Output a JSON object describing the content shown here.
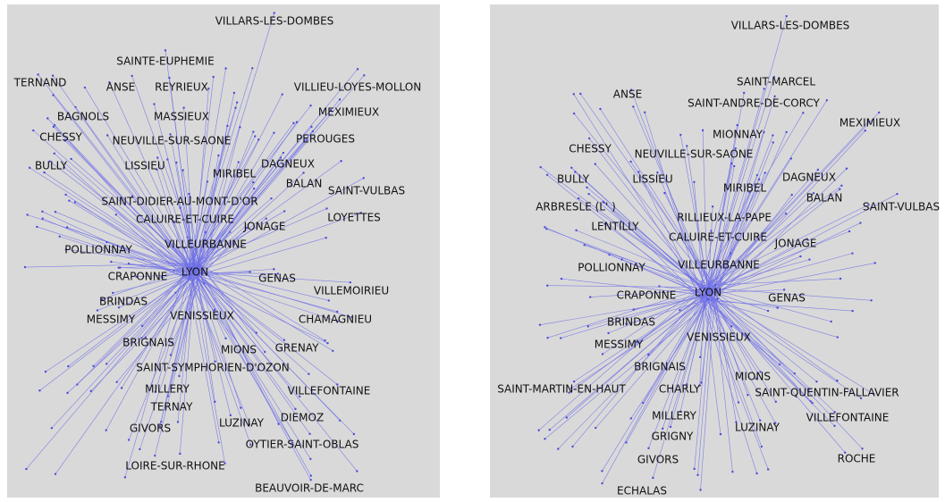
{
  "panels": [
    {
      "nodes": [
        "VILLARS-LES-DOMBES",
        "SAINTE-EUPHEMIE",
        "TERNAND",
        "ANSE",
        "REYRIEUX",
        "VILLIEU-LOYES-MOLLON",
        "BAGNOLS",
        "MASSIEUX",
        "MEXIMIEUX",
        "CHESSY",
        "NEUVILLE-SUR-SAONE",
        "PEROUGES",
        "BULLY",
        "LISSIEU",
        "MIRIBEL",
        "DAGNEUX",
        "BALAN",
        "SAINT-VULBAS",
        "SAINT-DIDIER-AU-MONT-D'OR",
        "CALUIRE-ET-CUIRE",
        "JONAGE",
        "LOYETTES",
        "POLLIONNAY",
        "VILLEURBANNE",
        "CRAPONNE",
        "LYON",
        "GENAS",
        "VILLEMOIRIEU",
        "BRINDAS",
        "MESSIMY",
        "VENISSIEUX",
        "CHAMAGNIEU",
        "BRIGNAIS",
        "MIONS",
        "GRENAY",
        "SAINT-SYMPHORIEN-D'OZON",
        "MILLERY",
        "VILLEFONTAINE",
        "TERNAY",
        "LUZINAY",
        "DIEMOZ",
        "GIVORS",
        "OYTIER-SAINT-OBLAS",
        "LOIRE-SUR-RHONE",
        "BEAUVOIR-DE-MARC"
      ]
    },
    {
      "nodes": [
        "VILLARS-LES-DOMBES",
        "SAINT-MARCEL",
        "ANSE",
        "SAINT-ANDRE-DE-CORCY",
        "MEXIMIEUX",
        "MIONNAY",
        "CHESSY",
        "NEUVILLE-SUR-SAONE",
        "BULLY",
        "LISSIEU",
        "MIRIBEL",
        "DAGNEUX",
        "BALAN",
        "SAINT-VULBAS",
        "ARBRESLE (L' )",
        "RILLIEUX-LA-PAPE",
        "LENTILLY",
        "CALUIRE-ET-CUIRE",
        "JONAGE",
        "POLLIONNAY",
        "VILLEURBANNE",
        "CRAPONNE",
        "LYON",
        "GENAS",
        "BRINDAS",
        "MESSIMY",
        "VENISSIEUX",
        "BRIGNAIS",
        "MIONS",
        "SAINT-MARTIN-EN-HAUT",
        "CHARLY",
        "SAINT-QUENTIN-FALLAVIER",
        "MILLERY",
        "VILLEFONTAINE",
        "GRIGNY",
        "LUZINAY",
        "GIVORS",
        "ROCHE",
        "ECHALAS"
      ]
    }
  ]
}
